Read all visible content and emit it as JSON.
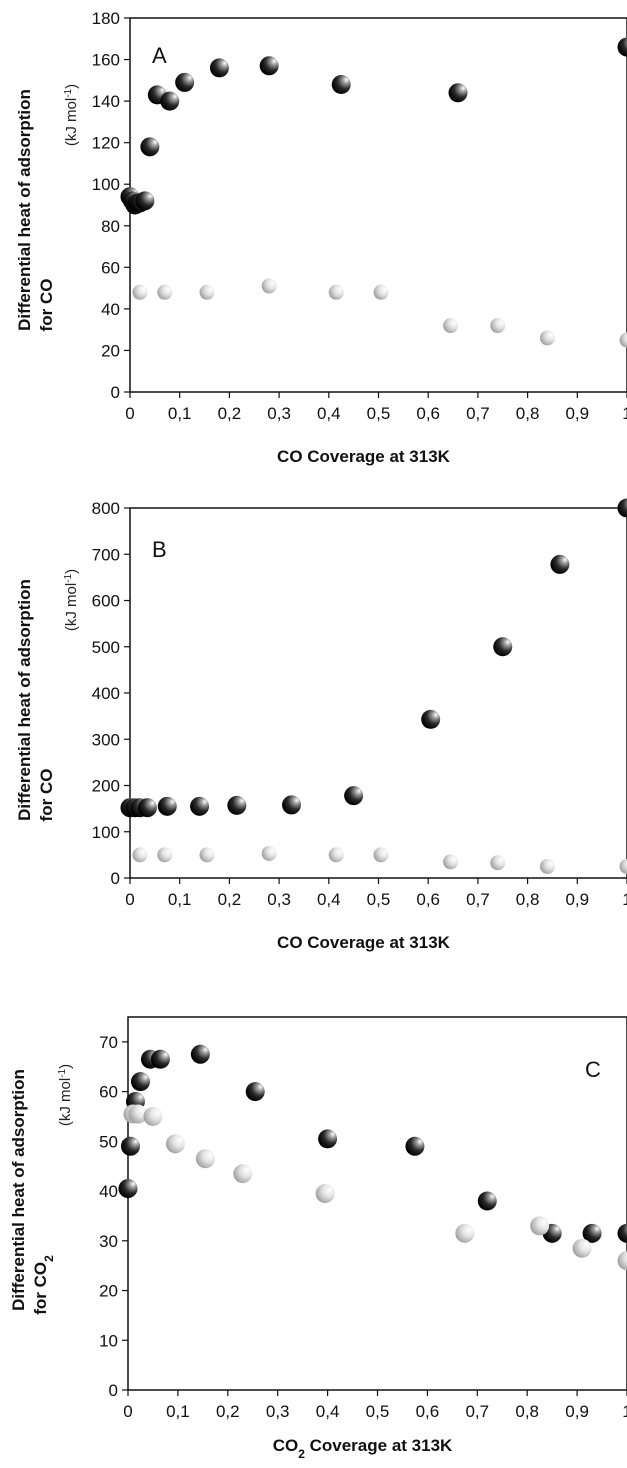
{
  "chart_data": [
    {
      "type": "scatter",
      "panel_label": "A",
      "ylabel_line1": "Differential heat of adsorption",
      "ylabel_line2": "for CO",
      "ylabel_unit": "(kJ mol",
      "ylabel_unit_sup": "-1",
      "ylabel_unit_close": ")",
      "xlabel": "CO Coverage at 313K",
      "xlim": [
        0,
        1
      ],
      "ylim": [
        0,
        180
      ],
      "xticks": [
        "0",
        "0,1",
        "0,2",
        "0,3",
        "0,4",
        "0,5",
        "0,6",
        "0,7",
        "0,8",
        "0,9",
        "1"
      ],
      "yticks": [
        "0",
        "20",
        "40",
        "60",
        "80",
        "100",
        "120",
        "140",
        "160",
        "180"
      ],
      "series": [
        {
          "style": "dark",
          "x": [
            0.0,
            0.005,
            0.01,
            0.015,
            0.02,
            0.03,
            0.04,
            0.055,
            0.08,
            0.11,
            0.18,
            0.28,
            0.425,
            0.66,
            1.0
          ],
          "y": [
            94,
            92,
            90,
            91,
            91,
            92,
            118,
            143,
            140,
            149,
            156,
            157,
            148,
            144,
            166
          ]
        },
        {
          "style": "light",
          "x": [
            0.02,
            0.07,
            0.155,
            0.28,
            0.415,
            0.505,
            0.645,
            0.74,
            0.84,
            1.0
          ],
          "y": [
            48,
            48,
            48,
            51,
            48,
            48,
            32,
            32,
            26,
            25
          ]
        }
      ]
    },
    {
      "type": "scatter",
      "panel_label": "B",
      "ylabel_line1": "Differential heat of adsorption",
      "ylabel_line2": "for CO",
      "ylabel_unit": "(kJ mol",
      "ylabel_unit_sup": "-1",
      "ylabel_unit_close": ")",
      "xlabel": "CO Coverage at 313K",
      "xlim": [
        0,
        1
      ],
      "ylim": [
        0,
        800
      ],
      "xticks": [
        "0",
        "0,1",
        "0,2",
        "0,3",
        "0,4",
        "0,5",
        "0,6",
        "0,7",
        "0,8",
        "0,9",
        "1"
      ],
      "yticks": [
        "0",
        "100",
        "200",
        "300",
        "400",
        "500",
        "600",
        "700",
        "800"
      ],
      "series": [
        {
          "style": "dark",
          "x": [
            0.0,
            0.01,
            0.02,
            0.035,
            0.075,
            0.14,
            0.215,
            0.325,
            0.45,
            0.605,
            0.75,
            0.865,
            1.0
          ],
          "y": [
            152,
            152,
            152,
            152,
            155,
            155,
            157,
            158,
            178,
            343,
            500,
            678,
            800
          ]
        },
        {
          "style": "light",
          "x": [
            0.02,
            0.07,
            0.155,
            0.28,
            0.415,
            0.505,
            0.645,
            0.74,
            0.84,
            1.0
          ],
          "y": [
            50,
            50,
            50,
            53,
            50,
            50,
            35,
            33,
            25,
            25
          ]
        }
      ]
    },
    {
      "type": "scatter",
      "panel_label": "C",
      "ylabel_line1": "Differential heat of adsorption",
      "ylabel_line2_main": "for CO",
      "ylabel_line2_sub": "2",
      "ylabel_unit": "(kJ mol",
      "ylabel_unit_sup": "-1",
      "ylabel_unit_close": ")",
      "xlabel_main": "CO",
      "xlabel_sub": "2",
      "xlabel_rest": " Coverage at 313K",
      "xlim": [
        0,
        1
      ],
      "ylim": [
        0,
        75
      ],
      "xticks": [
        "0",
        "0,1",
        "0,2",
        "0,3",
        "0,4",
        "0,5",
        "0,6",
        "0,7",
        "0,8",
        "0,9",
        "1"
      ],
      "yticks": [
        "0",
        "10",
        "20",
        "30",
        "40",
        "50",
        "60",
        "70"
      ],
      "series": [
        {
          "style": "dark",
          "x": [
            0.0,
            0.005,
            0.015,
            0.025,
            0.045,
            0.065,
            0.145,
            0.255,
            0.4,
            0.575,
            0.72,
            0.85,
            0.93,
            1.0
          ],
          "y": [
            40.5,
            49,
            58,
            62,
            66.5,
            66.5,
            67.5,
            60,
            50.5,
            49,
            38,
            31.5,
            31.5,
            31.5
          ]
        },
        {
          "style": "light",
          "x": [
            0.01,
            0.02,
            0.05,
            0.095,
            0.155,
            0.23,
            0.395,
            0.675,
            0.825,
            0.91,
            1.0
          ],
          "y": [
            55.5,
            55.5,
            55,
            49.5,
            46.5,
            43.5,
            39.5,
            31.5,
            33,
            28.5,
            26
          ]
        }
      ]
    }
  ]
}
